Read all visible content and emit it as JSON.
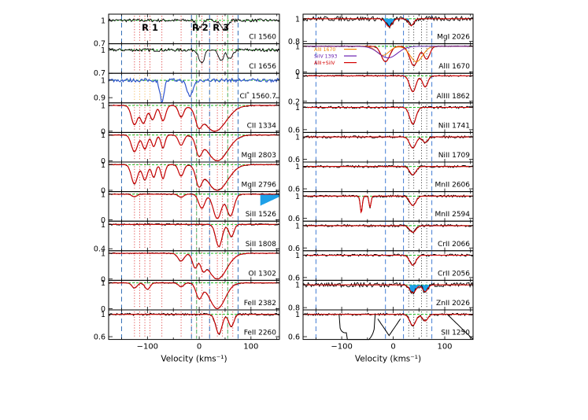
{
  "chart_data": [
    {
      "type": "line",
      "column": "left",
      "xlabel": "Velocity (kms⁻¹)",
      "xticks": [
        -100,
        0,
        100
      ],
      "xlim": [
        -175,
        155
      ],
      "component_labels": [
        "R 1",
        "R 2",
        "R 3"
      ],
      "component_velocities": [
        -125,
        -115,
        -105,
        -95,
        -72,
        -35,
        -15,
        -5,
        5,
        20,
        35,
        45,
        55,
        65
      ],
      "panels": [
        {
          "label": "CI 1560",
          "ylim": [
            0.7,
            1.08
          ],
          "yticks": [
            {
              "v": 1,
              "t": "1"
            },
            {
              "v": 0.7,
              "t": "0.7"
            }
          ],
          "has_fit": false,
          "fill": false,
          "lines": [
            {
              "v": 0,
              "d": 0.1,
              "w": 5
            },
            {
              "v": 48,
              "d": 0.12,
              "w": 6
            }
          ]
        },
        {
          "label": "CI 1656",
          "ylim": [
            0.7,
            1.08
          ],
          "yticks": [
            {
              "v": 1,
              "t": "1"
            },
            {
              "v": 0.7,
              "t": "0.7"
            }
          ],
          "has_fit": false,
          "fill": false,
          "lines": [
            {
              "v": 5,
              "d": 0.18,
              "w": 5
            },
            {
              "v": 42,
              "d": 0.15,
              "w": 5
            },
            {
              "v": 60,
              "d": 0.12,
              "w": 5
            }
          ]
        },
        {
          "label": "CI* 1560.7",
          "ylim": [
            0.87,
            1.04
          ],
          "yticks": [
            {
              "v": 1,
              "t": "1"
            },
            {
              "v": 0.9,
              "t": "0.9"
            }
          ],
          "has_fit": false,
          "fill": false,
          "blue": true,
          "lines": [
            {
              "v": -72,
              "d": 0.12,
              "w": 4
            },
            {
              "v": -18,
              "d": 0.09,
              "w": 6
            }
          ]
        },
        {
          "label": "CII 1334",
          "ylim": [
            -0.05,
            1.1
          ],
          "yticks": [
            {
              "v": 1,
              "t": "1"
            },
            {
              "v": 0,
              "t": "0"
            }
          ],
          "has_fit": true,
          "fill": false,
          "lines": [
            {
              "v": -125,
              "d": 0.75,
              "w": 6
            },
            {
              "v": -108,
              "d": 0.7,
              "w": 6
            },
            {
              "v": -90,
              "d": 0.55,
              "w": 5
            },
            {
              "v": -70,
              "d": 0.6,
              "w": 5
            },
            {
              "v": -35,
              "d": 0.45,
              "w": 5
            },
            {
              "v": 0,
              "d": 0.85,
              "w": 6
            },
            {
              "v": 30,
              "d": 1.0,
              "w": 22
            }
          ]
        },
        {
          "label": "MgII 2803",
          "ylim": [
            -0.05,
            1.1
          ],
          "yticks": [
            {
              "v": 1,
              "t": "1"
            },
            {
              "v": 0,
              "t": "0"
            }
          ],
          "has_fit": true,
          "fill": false,
          "lines": [
            {
              "v": -125,
              "d": 0.65,
              "w": 6
            },
            {
              "v": -105,
              "d": 0.55,
              "w": 5
            },
            {
              "v": -88,
              "d": 0.45,
              "w": 4
            },
            {
              "v": -70,
              "d": 0.5,
              "w": 4
            },
            {
              "v": -35,
              "d": 0.4,
              "w": 5
            },
            {
              "v": 0,
              "d": 0.8,
              "w": 6
            },
            {
              "v": 35,
              "d": 1.0,
              "w": 20
            }
          ]
        },
        {
          "label": "MgII 2796",
          "ylim": [
            -0.05,
            1.1
          ],
          "yticks": [
            {
              "v": 1,
              "t": "1"
            },
            {
              "v": 0,
              "t": "0"
            }
          ],
          "has_fit": true,
          "fill": false,
          "lines": [
            {
              "v": -125,
              "d": 0.75,
              "w": 6
            },
            {
              "v": -105,
              "d": 0.6,
              "w": 5
            },
            {
              "v": -88,
              "d": 0.5,
              "w": 4
            },
            {
              "v": -70,
              "d": 0.55,
              "w": 4
            },
            {
              "v": -35,
              "d": 0.45,
              "w": 5
            },
            {
              "v": 0,
              "d": 0.85,
              "w": 6
            },
            {
              "v": 35,
              "d": 1.0,
              "w": 20
            }
          ]
        },
        {
          "label": "SiII 1526",
          "ylim": [
            -0.05,
            1.1
          ],
          "yticks": [
            {
              "v": 1,
              "t": "1"
            },
            {
              "v": 0,
              "t": "0"
            }
          ],
          "has_fit": true,
          "fill": true,
          "lines": [
            {
              "v": -125,
              "d": 0.1,
              "w": 5
            },
            {
              "v": -35,
              "d": 0.12,
              "w": 5
            },
            {
              "v": 5,
              "d": 0.55,
              "w": 6
            },
            {
              "v": 35,
              "d": 0.95,
              "w": 8
            },
            {
              "v": 60,
              "d": 0.85,
              "w": 7
            }
          ]
        },
        {
          "label": "SiII 1808",
          "ylim": [
            0.35,
            1.08
          ],
          "yticks": [
            {
              "v": 1,
              "t": "1"
            },
            {
              "v": 0.4,
              "t": "0.4"
            }
          ],
          "has_fit": true,
          "fill": false,
          "lines": [
            {
              "v": 38,
              "d": 0.55,
              "w": 6
            },
            {
              "v": 62,
              "d": 0.3,
              "w": 5
            }
          ]
        },
        {
          "label": "OI 1302",
          "ylim": [
            -0.05,
            1.1
          ],
          "yticks": [
            {
              "v": 1,
              "t": "1"
            },
            {
              "v": 0,
              "t": "0"
            }
          ],
          "has_fit": true,
          "fill": false,
          "lines": [
            {
              "v": -35,
              "d": 0.3,
              "w": 6
            },
            {
              "v": -8,
              "d": 0.55,
              "w": 5
            },
            {
              "v": 8,
              "d": 0.6,
              "w": 5
            },
            {
              "v": 35,
              "d": 1.0,
              "w": 18
            }
          ]
        },
        {
          "label": "FeII 2382",
          "ylim": [
            -0.05,
            1.1
          ],
          "yticks": [
            {
              "v": 1,
              "t": "1"
            },
            {
              "v": 0,
              "t": "0"
            }
          ],
          "has_fit": true,
          "fill": false,
          "lines": [
            {
              "v": -125,
              "d": 0.2,
              "w": 5
            },
            {
              "v": -100,
              "d": 0.25,
              "w": 5
            },
            {
              "v": -35,
              "d": 0.15,
              "w": 5
            },
            {
              "v": 0,
              "d": 0.6,
              "w": 6
            },
            {
              "v": 35,
              "d": 1.0,
              "w": 15
            }
          ]
        },
        {
          "label": "FeII 2260",
          "ylim": [
            0.55,
            1.08
          ],
          "yticks": [
            {
              "v": 1,
              "t": "1"
            },
            {
              "v": 0.6,
              "t": "0.6"
            }
          ],
          "has_fit": true,
          "fill": false,
          "lines": [
            {
              "v": 38,
              "d": 0.35,
              "w": 6
            },
            {
              "v": 62,
              "d": 0.22,
              "w": 5
            }
          ]
        }
      ]
    },
    {
      "type": "line",
      "column": "right",
      "xlabel": "Velocity (kms⁻¹)",
      "xticks": [
        -100,
        0,
        100
      ],
      "xlim": [
        -175,
        155
      ],
      "panels": [
        {
          "label": "MgI 2026",
          "ylim": [
            0.78,
            1.04
          ],
          "yticks": [
            {
              "v": 1,
              "t": "1"
            },
            {
              "v": 0.8,
              "t": "0.8"
            }
          ],
          "has_fit": true,
          "fill": true,
          "lines": [
            {
              "v": -8,
              "d": 0.07,
              "w": 6
            },
            {
              "v": 35,
              "d": 0.06,
              "w": 5
            }
          ]
        },
        {
          "label": "AlII 1670",
          "ylim": [
            -0.05,
            1.1
          ],
          "yticks": [
            {
              "v": 1,
              "t": "1"
            },
            {
              "v": 0,
              "t": "0"
            }
          ],
          "has_fit": true,
          "fill": false,
          "legend": [
            "AlII 1670",
            "SiIV 1393",
            "AlII+SiIV"
          ],
          "lines": [
            {
              "v": -15,
              "d": 0.6,
              "w": 8
            },
            {
              "v": 40,
              "d": 0.75,
              "w": 8
            },
            {
              "v": 65,
              "d": 0.5,
              "w": 6
            }
          ]
        },
        {
          "label": "AlIII 1862",
          "ylim": [
            0.15,
            1.08
          ],
          "yticks": [
            {
              "v": 1,
              "t": "1"
            },
            {
              "v": 0.2,
              "t": "0.2"
            }
          ],
          "has_fit": true,
          "fill": false,
          "lines": [
            {
              "v": 38,
              "d": 0.5,
              "w": 6
            },
            {
              "v": 62,
              "d": 0.35,
              "w": 5
            }
          ]
        },
        {
          "label": "NiII 1741",
          "ylim": [
            0.55,
            1.08
          ],
          "yticks": [
            {
              "v": 1,
              "t": "1"
            },
            {
              "v": 0.6,
              "t": "0.6"
            }
          ],
          "has_fit": true,
          "fill": false,
          "lines": [
            {
              "v": 38,
              "d": 0.3,
              "w": 6
            }
          ]
        },
        {
          "label": "NiII 1709",
          "ylim": [
            0.55,
            1.08
          ],
          "yticks": [
            {
              "v": 1,
              "t": "1"
            },
            {
              "v": 0.6,
              "t": "0.6"
            }
          ],
          "has_fit": true,
          "fill": false,
          "lines": [
            {
              "v": 38,
              "d": 0.2,
              "w": 6
            },
            {
              "v": 62,
              "d": 0.1,
              "w": 5
            }
          ]
        },
        {
          "label": "MnII 2606",
          "ylim": [
            0.55,
            1.08
          ],
          "yticks": [
            {
              "v": 1,
              "t": "1"
            },
            {
              "v": 0.6,
              "t": "0.6"
            }
          ],
          "has_fit": true,
          "fill": false,
          "lines": [
            {
              "v": 38,
              "d": 0.15,
              "w": 6
            }
          ]
        },
        {
          "label": "MnII 2594",
          "ylim": [
            0.55,
            1.08
          ],
          "yticks": [
            {
              "v": 1,
              "t": "1"
            },
            {
              "v": 0.6,
              "t": "0.6"
            }
          ],
          "has_fit": true,
          "fill": false,
          "lines": [
            {
              "v": -62,
              "d": 0.3,
              "w": 2
            },
            {
              "v": -45,
              "d": 0.2,
              "w": 2
            },
            {
              "v": 38,
              "d": 0.17,
              "w": 6
            }
          ]
        },
        {
          "label": "CrII 2066",
          "ylim": [
            0.55,
            1.08
          ],
          "yticks": [
            {
              "v": 1,
              "t": "1"
            },
            {
              "v": 0.6,
              "t": "0.6"
            }
          ],
          "has_fit": true,
          "fill": false,
          "lines": [
            {
              "v": 38,
              "d": 0.12,
              "w": 6
            }
          ]
        },
        {
          "label": "CrII 2056",
          "ylim": [
            0.55,
            1.08
          ],
          "yticks": [
            {
              "v": 1,
              "t": "1"
            },
            {
              "v": 0.6,
              "t": "0.6"
            }
          ],
          "has_fit": true,
          "fill": false,
          "lines": [
            {
              "v": 38,
              "d": 0.18,
              "w": 6
            }
          ]
        },
        {
          "label": "ZnII 2026",
          "ylim": [
            0.78,
            1.04
          ],
          "yticks": [
            {
              "v": 1,
              "t": "1"
            },
            {
              "v": 0.8,
              "t": "0.8"
            }
          ],
          "has_fit": true,
          "fill": true,
          "lines": [
            {
              "v": 38,
              "d": 0.07,
              "w": 6
            },
            {
              "v": 62,
              "d": 0.06,
              "w": 5
            }
          ]
        },
        {
          "label": "SII 1250",
          "ylim": [
            0.55,
            1.08
          ],
          "yticks": [
            {
              "v": 1,
              "t": "1"
            },
            {
              "v": 0.6,
              "t": "0.6"
            }
          ],
          "has_fit": true,
          "fill": false,
          "lines": [
            {
              "v": 38,
              "d": 0.2,
              "w": 6
            },
            {
              "v": 62,
              "d": 0.12,
              "w": 5
            }
          ]
        }
      ]
    }
  ],
  "colors": {
    "spectrum": "#000000",
    "fit": "#d40000",
    "noise": "#00b000",
    "fill": "#1ea0e8",
    "blue_line": "#3055cc",
    "orange": "#f08000",
    "purple": "#6a20b0"
  }
}
